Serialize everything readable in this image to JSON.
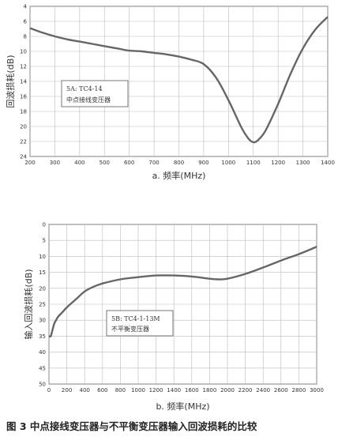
{
  "chart_data": [
    {
      "type": "line",
      "xlabel": "a. 频率(MHz)",
      "ylabel": "回波损耗(dB)",
      "xlim": [
        200,
        1400
      ],
      "ylim": [
        4,
        24
      ],
      "y_inverted": true,
      "xticks": [
        200,
        300,
        400,
        500,
        600,
        700,
        800,
        900,
        1000,
        1100,
        1200,
        1300,
        1400
      ],
      "yticks": [
        4,
        6,
        8,
        10,
        12,
        14,
        16,
        18,
        20,
        22,
        24
      ],
      "grid": true,
      "legend_lines": [
        "5A: TC4-14",
        "中点接线变压器"
      ],
      "legend_position": "left-center",
      "series": [
        {
          "x": [
            200,
            250,
            300,
            350,
            400,
            450,
            500,
            550,
            600,
            650,
            700,
            750,
            800,
            850,
            900,
            950,
            1000,
            1050,
            1080,
            1100,
            1120,
            1150,
            1200,
            1250,
            1300,
            1350,
            1400
          ],
          "y": [
            6.9,
            7.5,
            8.0,
            8.4,
            8.7,
            9.0,
            9.3,
            9.6,
            9.9,
            10.0,
            10.2,
            10.4,
            10.7,
            11.1,
            11.7,
            13.5,
            16.5,
            20.0,
            21.6,
            22.1,
            21.8,
            20.5,
            17.0,
            13.0,
            9.6,
            7.1,
            5.4
          ]
        }
      ]
    },
    {
      "type": "line",
      "xlabel": "b. 频率(MHz)",
      "ylabel": "输入回波损耗(dB)",
      "xlim": [
        0,
        3000
      ],
      "ylim": [
        0,
        50
      ],
      "y_inverted": true,
      "xticks": [
        0,
        200,
        400,
        600,
        800,
        1000,
        1200,
        1400,
        1600,
        1800,
        2000,
        2200,
        2400,
        2600,
        2800,
        3000
      ],
      "yticks": [
        0,
        5,
        10,
        15,
        20,
        25,
        30,
        35,
        40,
        45,
        50
      ],
      "grid": true,
      "legend_lines": [
        "5B: TC4-1-13M",
        "不平衡变压器"
      ],
      "legend_position": "left-center",
      "series": [
        {
          "x": [
            0,
            20,
            40,
            60,
            80,
            100,
            150,
            200,
            300,
            400,
            500,
            600,
            800,
            1000,
            1200,
            1400,
            1600,
            1800,
            1900,
            2000,
            2200,
            2400,
            2600,
            2800,
            3000
          ],
          "y": [
            35,
            35,
            33,
            31,
            30,
            29,
            27.5,
            26,
            23.5,
            21,
            19.5,
            18.5,
            17.2,
            16.5,
            16,
            16,
            16.3,
            17,
            17.2,
            17,
            15.5,
            13.5,
            11.3,
            9.3,
            7
          ]
        }
      ]
    }
  ],
  "caption": "图 3 中点接线变压器与不平衡变压器输入回波损耗的比较"
}
